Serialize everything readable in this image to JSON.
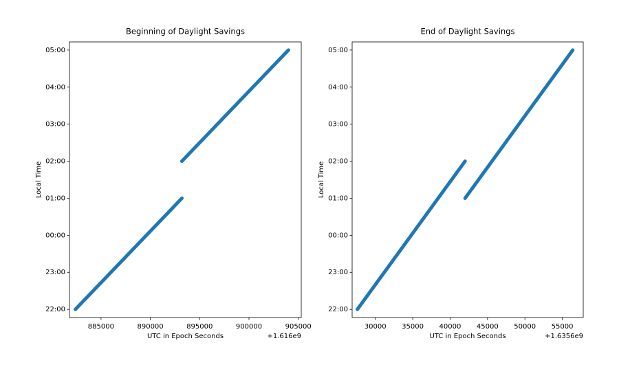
{
  "chart_data": [
    {
      "type": "line",
      "title": "Beginning of Daylight Savings",
      "x_label": "UTC in Epoch Seconds",
      "y_label": "Local Time",
      "x_offset_label": "+1.616e9",
      "x": [
        882400,
        893200,
        893200,
        893200,
        904000
      ],
      "series": [
        {
          "name": "Local Time",
          "color": "#1f77b4",
          "values": [
            22,
            25,
            null,
            26,
            29
          ]
        }
      ],
      "xlim": [
        881800,
        905300
      ],
      "xticks": [
        885000,
        890000,
        895000,
        900000,
        905000
      ],
      "ylim": [
        21.78,
        29.22
      ],
      "yticks": [
        {
          "value": 22,
          "label": "22:00"
        },
        {
          "value": 23,
          "label": "23:00"
        },
        {
          "value": 24,
          "label": "00:00"
        },
        {
          "value": 25,
          "label": "01:00"
        },
        {
          "value": 26,
          "label": "02:00"
        },
        {
          "value": 27,
          "label": "03:00"
        },
        {
          "value": 28,
          "label": "04:00"
        },
        {
          "value": 29,
          "label": "05:00"
        }
      ]
    },
    {
      "type": "line",
      "title": "End of Daylight Savings",
      "x_label": "UTC in Epoch Seconds",
      "y_label": "Local Time",
      "x_offset_label": "+1.6356e9",
      "x": [
        27600,
        42000,
        42000,
        42000,
        56400
      ],
      "series": [
        {
          "name": "Local Time",
          "color": "#1f77b4",
          "values": [
            22,
            26,
            null,
            25,
            29
          ]
        }
      ],
      "xlim": [
        26900,
        57800
      ],
      "xticks": [
        30000,
        35000,
        40000,
        45000,
        50000,
        55000
      ],
      "ylim": [
        21.78,
        29.22
      ],
      "yticks": [
        {
          "value": 22,
          "label": "22:00"
        },
        {
          "value": 23,
          "label": "23:00"
        },
        {
          "value": 24,
          "label": "00:00"
        },
        {
          "value": 25,
          "label": "01:00"
        },
        {
          "value": 26,
          "label": "02:00"
        },
        {
          "value": 27,
          "label": "03:00"
        },
        {
          "value": 28,
          "label": "04:00"
        },
        {
          "value": 29,
          "label": "05:00"
        }
      ]
    }
  ]
}
